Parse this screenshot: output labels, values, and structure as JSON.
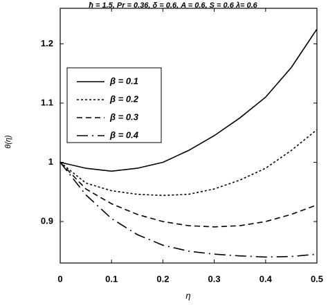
{
  "chart_data": {
    "type": "line",
    "title": "ħ = 1.5, Pr = 0.36, δ = 0.6, A = 0.6, S = 0.6   λ= 0.6",
    "x_label": "η",
    "y_label": "θ(η)",
    "x": [
      0,
      0.05,
      0.1,
      0.15,
      0.2,
      0.25,
      0.3,
      0.35,
      0.4,
      0.45,
      0.5
    ],
    "series": [
      {
        "name": "β = 0.1",
        "color": "#000000",
        "style": "solid",
        "values": [
          1.0,
          0.99,
          0.985,
          0.99,
          1.0,
          1.02,
          1.045,
          1.075,
          1.11,
          1.16,
          1.225
        ]
      },
      {
        "name": "β = 0.2",
        "color": "#000000",
        "style": "dotted",
        "values": [
          1.0,
          0.965,
          0.952,
          0.946,
          0.944,
          0.946,
          0.955,
          0.97,
          0.99,
          1.02,
          1.055
        ]
      },
      {
        "name": "β = 0.3",
        "color": "#000000",
        "style": "dashed",
        "values": [
          1.0,
          0.955,
          0.93,
          0.912,
          0.9,
          0.893,
          0.891,
          0.893,
          0.9,
          0.912,
          0.928
        ]
      },
      {
        "name": "β = 0.4",
        "color": "#000000",
        "style": "longdash",
        "values": [
          1.0,
          0.945,
          0.905,
          0.878,
          0.86,
          0.85,
          0.845,
          0.842,
          0.84,
          0.841,
          0.845
        ]
      }
    ],
    "xlim": [
      0,
      0.5
    ],
    "xticks": [
      0,
      0.1,
      0.2,
      0.3,
      0.4,
      0.5
    ],
    "ylim": [
      0.83,
      1.26
    ],
    "yticks": [
      0.9,
      1,
      1.1,
      1.2
    ],
    "legend": "upper left"
  }
}
